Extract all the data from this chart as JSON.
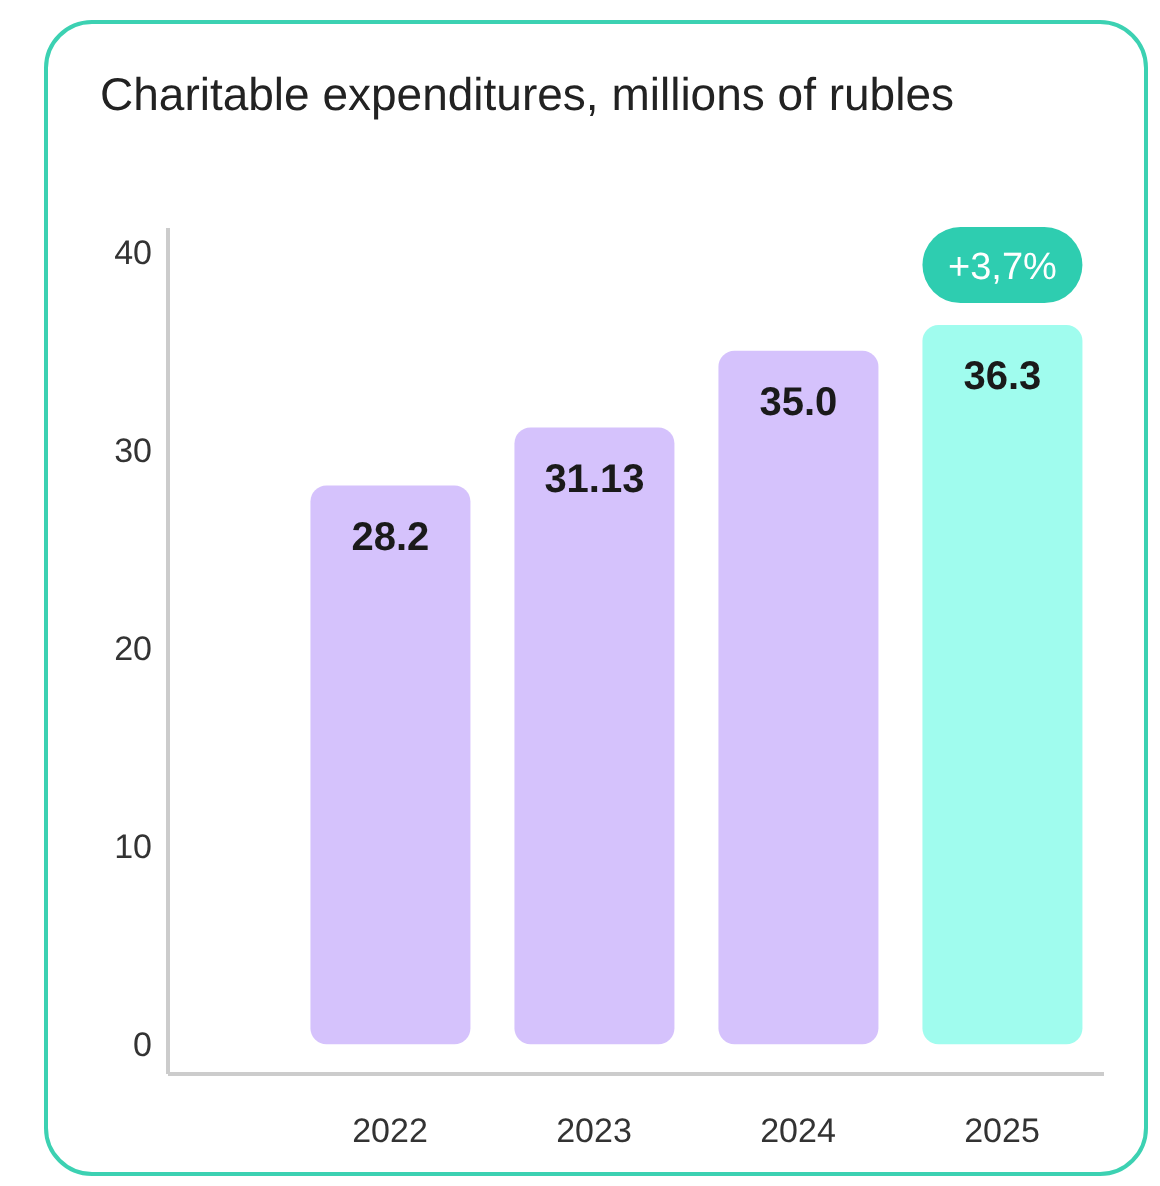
{
  "chart_data": {
    "type": "bar",
    "title": "Charitable expenditures, millions of rubles",
    "categories": [
      "2022",
      "2023",
      "2024",
      "2025"
    ],
    "values": [
      28.2,
      31.13,
      35.0,
      36.3
    ],
    "value_labels": [
      "28.2",
      "31.13",
      "35.0",
      "36.3"
    ],
    "colors": [
      "#d5c2fc",
      "#d5c2fc",
      "#d5c2fc",
      "#a0fcee"
    ],
    "ylim": [
      -1.5,
      41.2
    ],
    "yticks": [
      0,
      10,
      20,
      30,
      40
    ],
    "grid": false,
    "annotations": [
      "+3,7%"
    ]
  }
}
